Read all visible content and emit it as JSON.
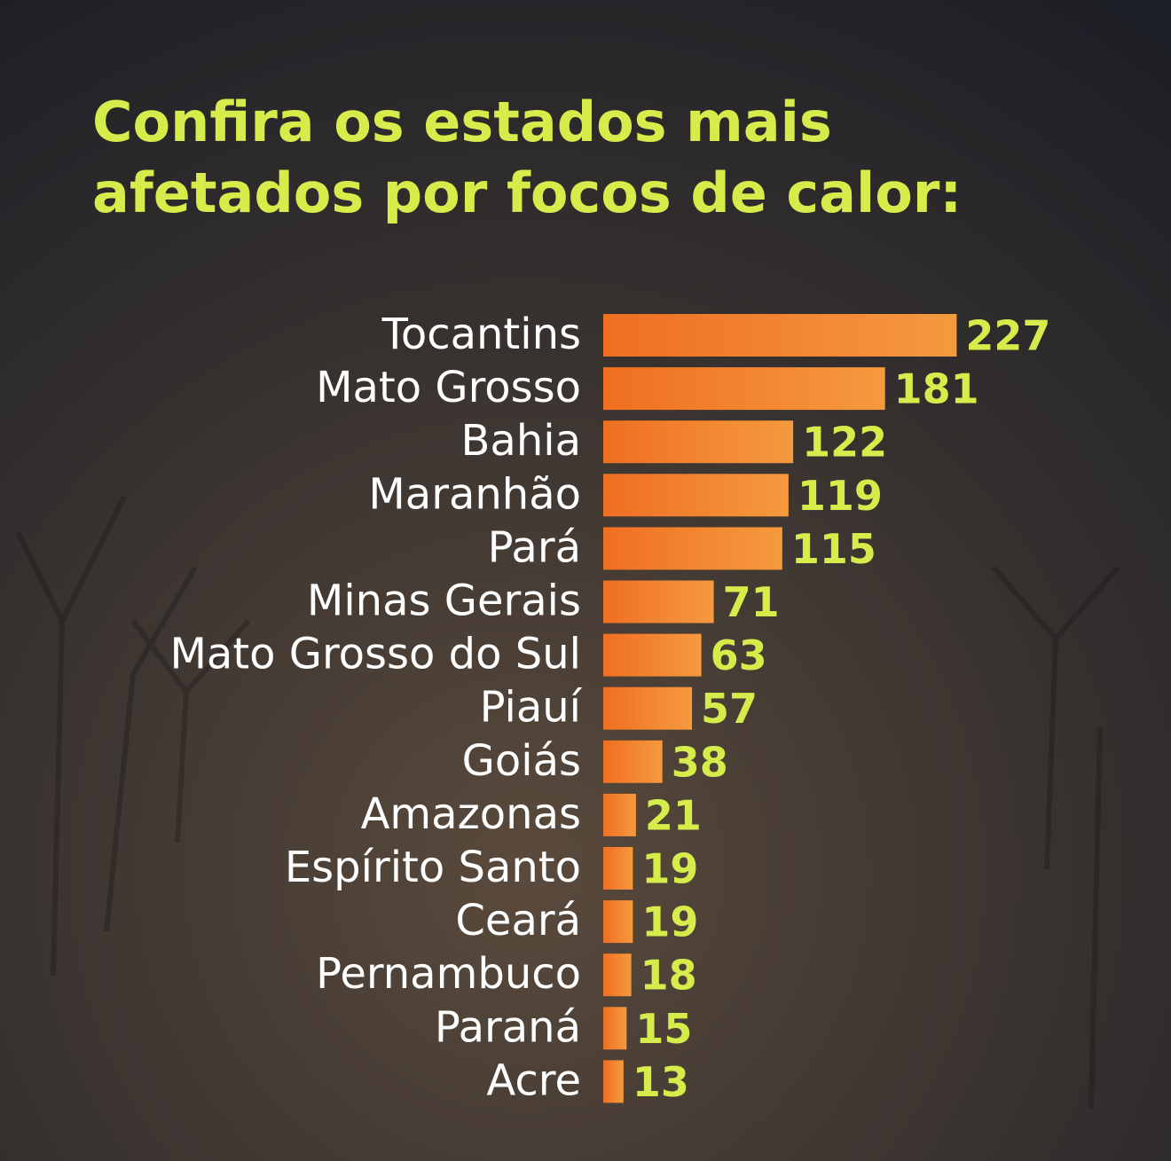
{
  "chart_data": {
    "type": "bar",
    "orientation": "horizontal",
    "title": [
      "Confira os estados mais",
      "afetados por focos de calor:"
    ],
    "categories": [
      "Tocantins",
      "Mato Grosso",
      "Bahia",
      "Maranhão",
      "Pará",
      "Minas Gerais",
      "Mato Grosso do Sul",
      "Piauí",
      "Goiás",
      "Amazonas",
      "Espírito Santo",
      "Ceará",
      "Pernambuco",
      "Paraná",
      "Acre"
    ],
    "values": [
      227,
      181,
      122,
      119,
      115,
      71,
      63,
      57,
      38,
      21,
      19,
      19,
      18,
      15,
      13
    ],
    "color": "#f27a28"
  }
}
